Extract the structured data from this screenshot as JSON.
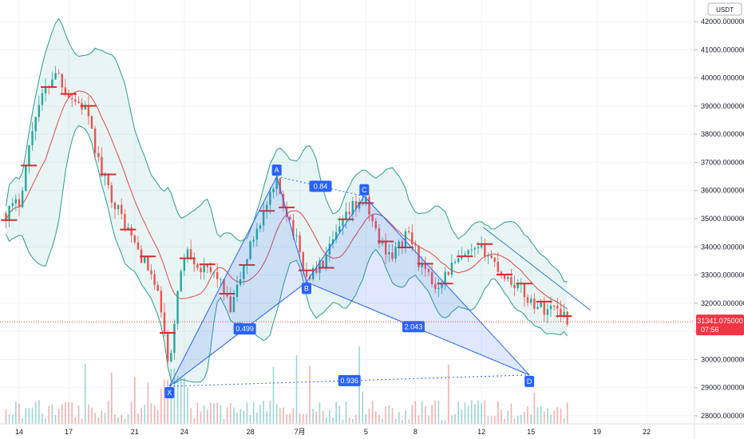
{
  "chart_data": {
    "type": "candlestick",
    "currency_unit": "USDT",
    "y_axis": {
      "ylim": [
        27650,
        42550
      ],
      "ticks": [
        28000,
        29000,
        30000,
        31000,
        32000,
        33000,
        34000,
        35000,
        36000,
        37000,
        38000,
        39000,
        40000,
        41000,
        42000
      ],
      "tick_labels": [
        "28000.000000",
        "29000.000000",
        "30000.000000",
        "31000.000000",
        "32000.000000",
        "33000.000000",
        "34000.000000",
        "35000.000000",
        "36000.000000",
        "37000.000000",
        "38000.000000",
        "39000.000000",
        "40000.000000",
        "41000.000000",
        "42000.000000"
      ]
    },
    "x_axis": {
      "labels": [
        "14",
        "17",
        "21",
        "24",
        "28",
        "7月",
        "5",
        "8",
        "12",
        "15",
        "19",
        "22"
      ],
      "label_day_index": [
        14,
        17,
        21,
        24,
        28,
        31,
        35,
        38,
        42,
        45,
        49,
        52
      ]
    },
    "current_price": {
      "value": 31341.075,
      "label": "31341.075000",
      "countdown": "07:56",
      "color": "#f23645"
    },
    "harmonic_pattern": {
      "fill_color": "#2962ff",
      "points": [
        {
          "label": "X",
          "day": 23.1,
          "price": 29050
        },
        {
          "label": "A",
          "day": 29.6,
          "price": 36500
        },
        {
          "label": "B",
          "day": 31.4,
          "price": 32750
        },
        {
          "label": "C",
          "day": 34.9,
          "price": 35800
        },
        {
          "label": "D",
          "day": 44.9,
          "price": 29450
        }
      ],
      "ratios": [
        {
          "label": "0.499",
          "between": "X-B"
        },
        {
          "label": "0.84",
          "between": "A-C"
        },
        {
          "label": "2.043",
          "between": "B-D"
        },
        {
          "label": "0.936",
          "between": "X-D"
        }
      ]
    },
    "trendline": {
      "from_day": 42.1,
      "from_price": 34700,
      "to_day": 48.6,
      "to_price": 31750,
      "color": "#3179c7"
    },
    "colors": {
      "up": "#26a69a",
      "down": "#ef5350",
      "band": "#2a9d8f",
      "ma": "#e0474c"
    }
  }
}
